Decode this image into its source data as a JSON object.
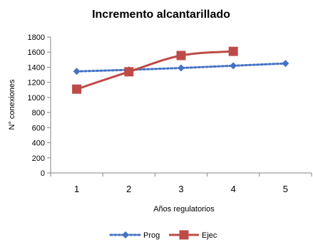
{
  "chart_data": {
    "type": "line",
    "title": "Incremento alcantarillado",
    "xlabel": "Años regulatorios",
    "ylabel": "N° conexiones",
    "categories": [
      "1",
      "2",
      "3",
      "4",
      "5"
    ],
    "ylim": [
      0,
      1800
    ],
    "yticks": [
      0,
      200,
      400,
      600,
      800,
      1000,
      1200,
      1400,
      1600,
      1800
    ],
    "grid": false,
    "legend_position": "bottom",
    "series": [
      {
        "name": "Prog",
        "values": [
          1345,
          1365,
          1390,
          1420,
          1450
        ],
        "color": "#4472C4",
        "line_style": "dotted",
        "marker": "diamond"
      },
      {
        "name": "Ejec",
        "values": [
          1110,
          1340,
          1555,
          1610,
          null
        ],
        "color": "#BE4B48",
        "line_style": "solid",
        "marker": "square"
      }
    ]
  }
}
